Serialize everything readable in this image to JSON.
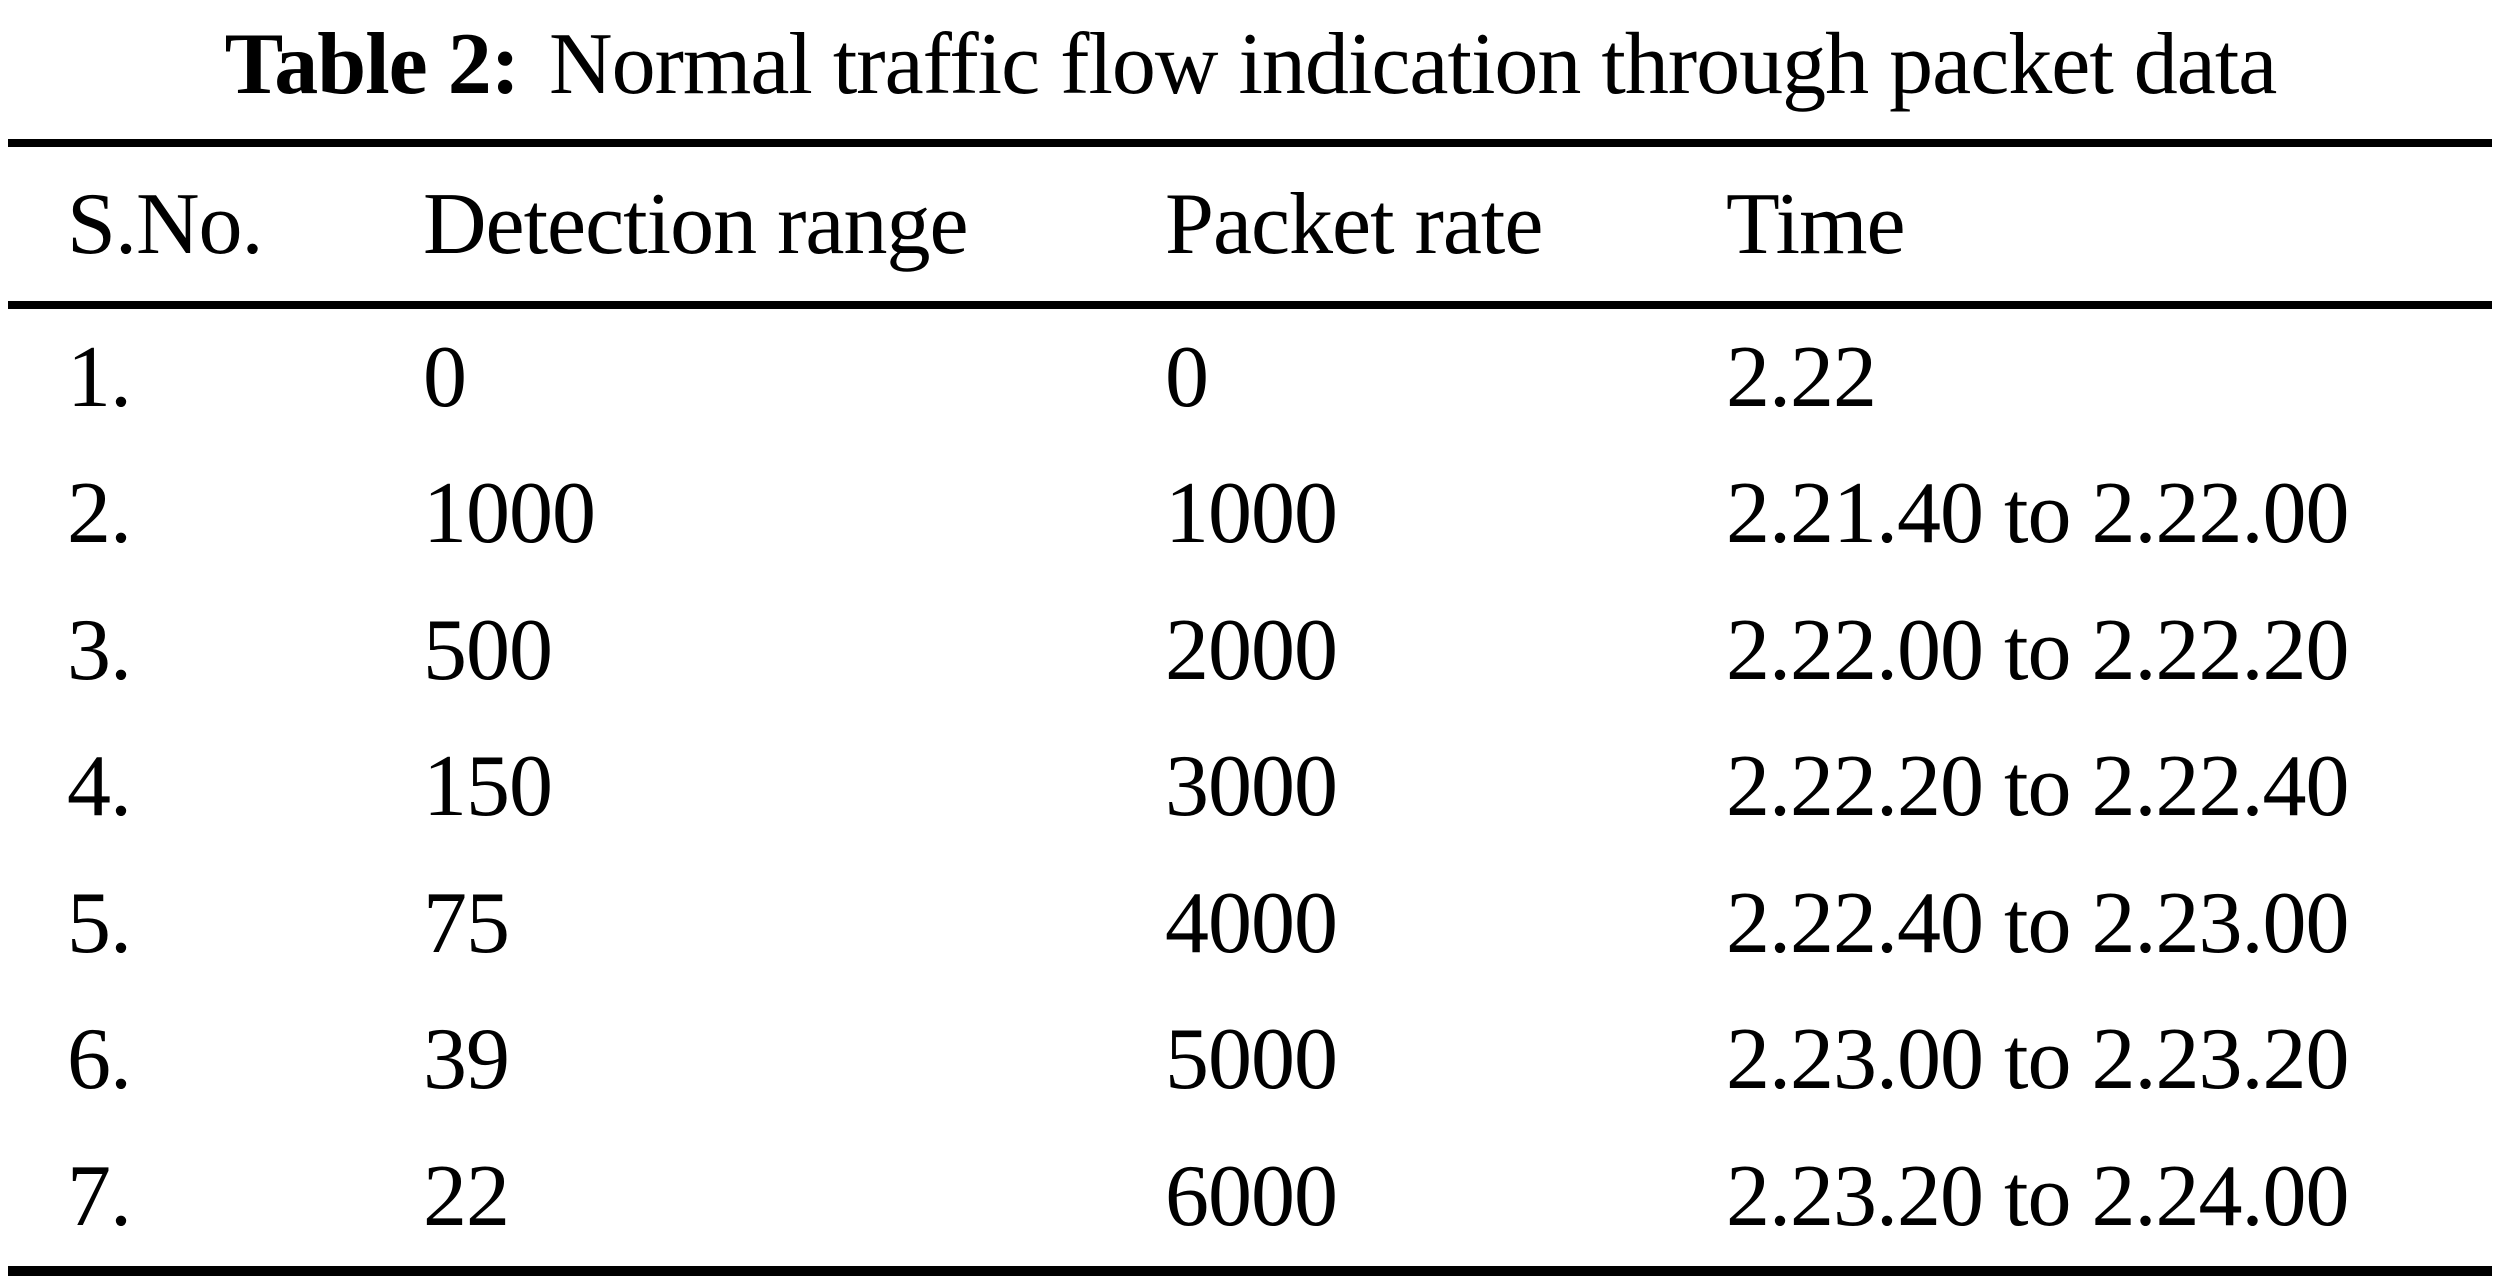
{
  "caption": {
    "label": "Table 2:",
    "text": "Normal traffic flow indication through packet data"
  },
  "colors": {
    "text": "#000000",
    "background": "#ffffff",
    "rule": "#000000"
  },
  "table": {
    "headers": [
      "S.No.",
      "Detection range",
      "Packet rate",
      "Time"
    ],
    "rows": [
      {
        "sno": "1.",
        "detection_range": "0",
        "packet_rate": "0",
        "time": "2.22"
      },
      {
        "sno": "2.",
        "detection_range": "1000",
        "packet_rate": "1000",
        "time": "2.21.40 to 2.22.00"
      },
      {
        "sno": "3.",
        "detection_range": "500",
        "packet_rate": "2000",
        "time": "2.22.00 to 2.22.20"
      },
      {
        "sno": "4.",
        "detection_range": "150",
        "packet_rate": "3000",
        "time": "2.22.20 to 2.22.40"
      },
      {
        "sno": "5.",
        "detection_range": "75",
        "packet_rate": "4000",
        "time": "2.22.40 to 2.23.00"
      },
      {
        "sno": "6.",
        "detection_range": "39",
        "packet_rate": "5000",
        "time": "2.23.00 to 2.23.20"
      },
      {
        "sno": "7.",
        "detection_range": "22",
        "packet_rate": "6000",
        "time": "2.23.20 to 2.24.00"
      }
    ]
  }
}
